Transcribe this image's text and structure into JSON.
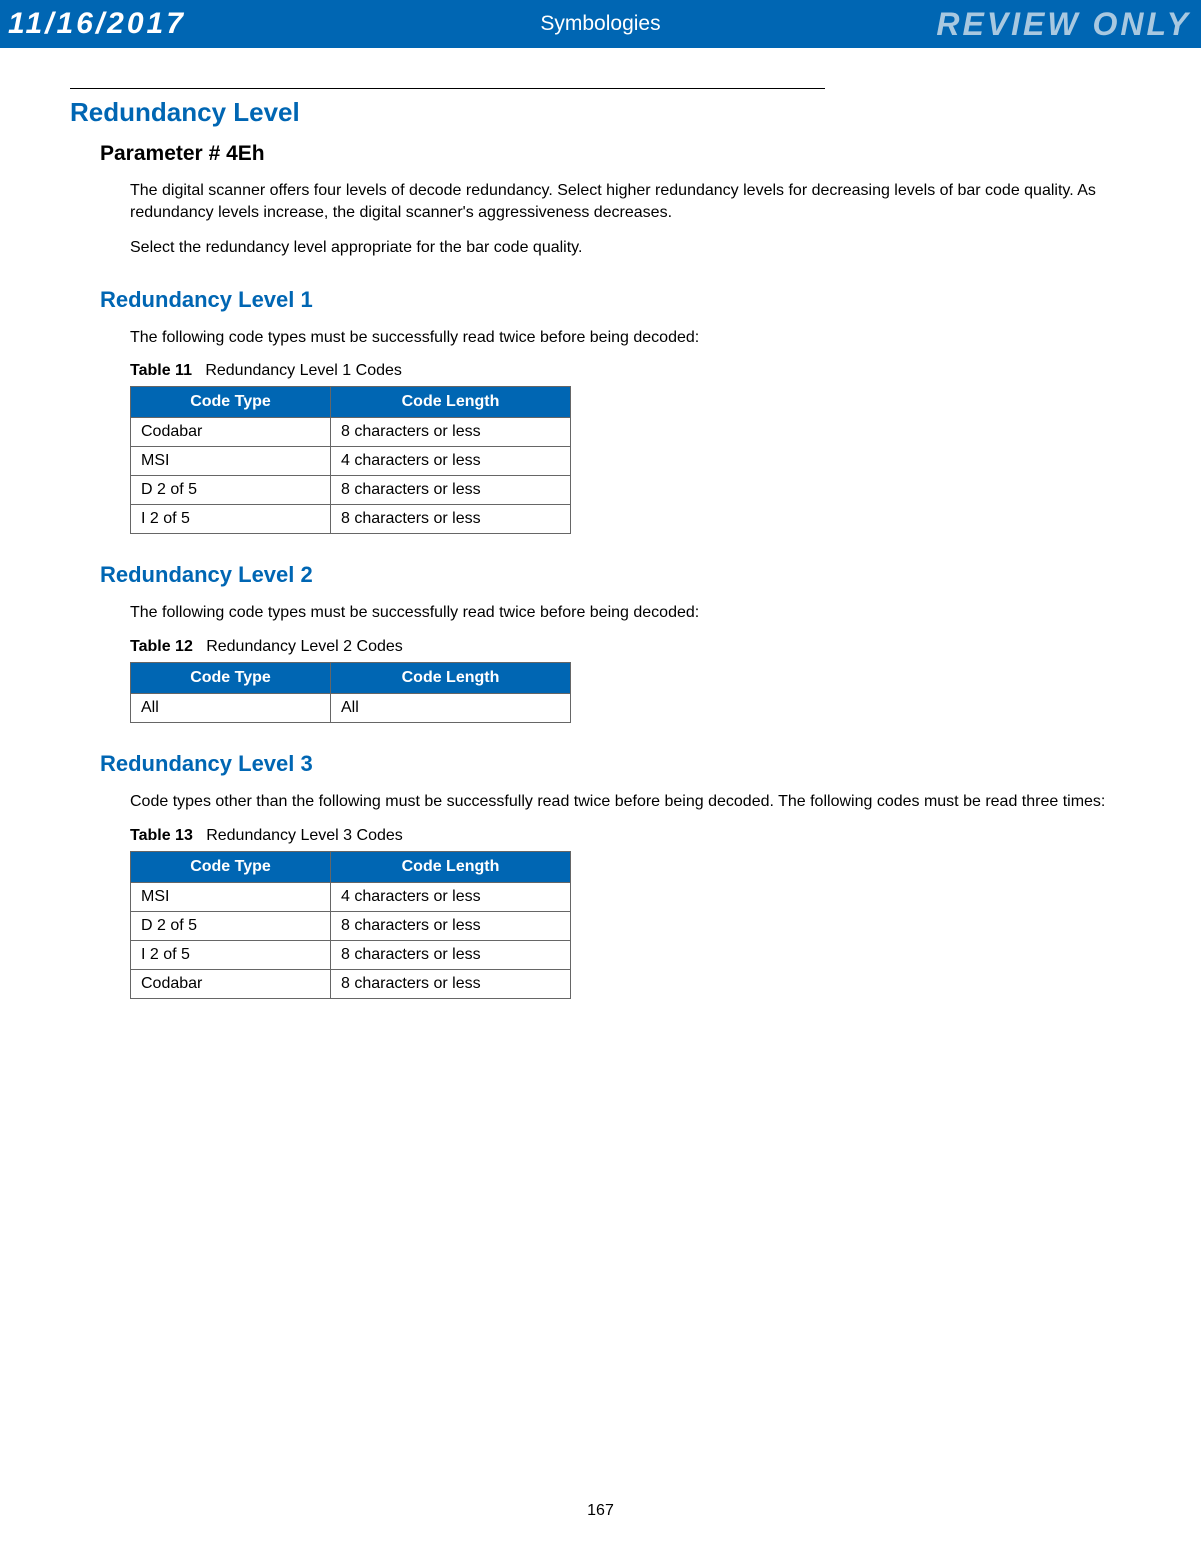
{
  "header": {
    "date": "11/16/2017",
    "title": "Symbologies",
    "review": "REVIEW ONLY"
  },
  "section": {
    "title": "Redundancy Level",
    "parameter": "Parameter # 4Eh",
    "intro1": "The digital scanner offers four levels of decode redundancy. Select higher redundancy levels for decreasing levels of bar code quality. As redundancy levels increase, the digital scanner's aggressiveness decreases.",
    "intro2": "Select the redundancy level appropriate for the bar code quality."
  },
  "level1": {
    "heading": "Redundancy Level 1",
    "desc": "The following code types must be successfully read twice before being decoded:",
    "caption_label": "Table 11",
    "caption_text": "Redundancy Level 1 Codes",
    "columns": [
      "Code Type",
      "Code Length"
    ],
    "rows": [
      [
        "Codabar",
        "8 characters or less"
      ],
      [
        "MSI",
        "4 characters or less"
      ],
      [
        "D 2 of 5",
        "8 characters or less"
      ],
      [
        "I 2 of 5",
        "8 characters or less"
      ]
    ]
  },
  "level2": {
    "heading": "Redundancy Level 2",
    "desc": "The following code types must be successfully read twice before being decoded:",
    "caption_label": "Table 12",
    "caption_text": "Redundancy Level 2 Codes",
    "columns": [
      "Code Type",
      "Code Length"
    ],
    "rows": [
      [
        "All",
        "All"
      ]
    ]
  },
  "level3": {
    "heading": "Redundancy Level 3",
    "desc": "Code types other than the following must be successfully read twice before being decoded. The following codes must be read three times:",
    "caption_label": "Table 13",
    "caption_text": "Redundancy Level 3 Codes",
    "columns": [
      "Code Type",
      "Code Length"
    ],
    "rows": [
      [
        "MSI",
        "4 characters or less"
      ],
      [
        "D 2 of 5",
        "8 characters or less"
      ],
      [
        "I 2 of 5",
        "8 characters or less"
      ],
      [
        "Codabar",
        "8 characters or less"
      ]
    ]
  },
  "page_number": "167",
  "colors": {
    "header_bg": "#0066b3",
    "header_text": "#ffffff",
    "review_text": "#a8c8e0",
    "heading_blue": "#0066b3",
    "table_header_bg": "#0066b3",
    "table_border": "#666666"
  }
}
